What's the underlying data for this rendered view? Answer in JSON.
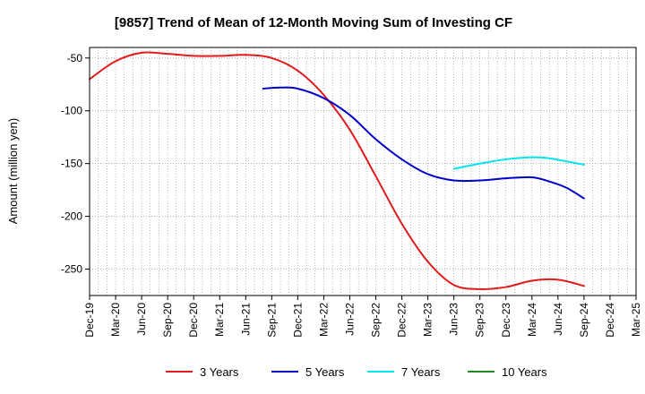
{
  "chart_data": {
    "type": "line",
    "title": "[9857]  Trend of Mean of 12-Month Moving Sum of Investing CF",
    "xlabel": "",
    "ylabel": "Amount (million yen)",
    "ylim": [
      -275,
      -40
    ],
    "yticks": [
      -50,
      -100,
      -150,
      -200,
      -250
    ],
    "x_ticks": [
      "Dec-19",
      "Mar-20",
      "Jun-20",
      "Sep-20",
      "Dec-20",
      "Mar-21",
      "Jun-21",
      "Sep-21",
      "Dec-21",
      "Mar-22",
      "Jun-22",
      "Sep-22",
      "Dec-22",
      "Mar-23",
      "Jun-23",
      "Sep-23",
      "Dec-23",
      "Mar-24",
      "Jun-24",
      "Sep-24",
      "Dec-24",
      "Mar-25"
    ],
    "grid": true,
    "legend_position": "bottom",
    "series": [
      {
        "name": "3 Years",
        "color": "#e31a1c",
        "points": [
          [
            0,
            -70
          ],
          [
            1,
            -53
          ],
          [
            2,
            -45
          ],
          [
            3,
            -46
          ],
          [
            4,
            -48
          ],
          [
            5,
            -48
          ],
          [
            6,
            -47
          ],
          [
            7,
            -50
          ],
          [
            8,
            -62
          ],
          [
            9,
            -85
          ],
          [
            10,
            -118
          ],
          [
            11,
            -162
          ],
          [
            12,
            -207
          ],
          [
            13,
            -243
          ],
          [
            14,
            -265
          ],
          [
            15,
            -269
          ],
          [
            16,
            -267
          ],
          [
            17,
            -261
          ],
          [
            18,
            -260
          ],
          [
            19,
            -266
          ]
        ]
      },
      {
        "name": "5 Years",
        "color": "#0000cc",
        "points": [
          [
            6.67,
            -79
          ],
          [
            7.33,
            -78
          ],
          [
            8,
            -79
          ],
          [
            9,
            -88
          ],
          [
            10,
            -104
          ],
          [
            11,
            -127
          ],
          [
            12,
            -146
          ],
          [
            13,
            -160
          ],
          [
            14,
            -166
          ],
          [
            15,
            -166
          ],
          [
            16,
            -164
          ],
          [
            17,
            -163
          ],
          [
            17.67,
            -167
          ],
          [
            18.33,
            -173
          ],
          [
            19,
            -183
          ]
        ]
      },
      {
        "name": "7 Years",
        "color": "#00e5ee",
        "points": [
          [
            14,
            -155
          ],
          [
            15,
            -150
          ],
          [
            16,
            -146
          ],
          [
            17,
            -144
          ],
          [
            17.67,
            -145
          ],
          [
            18.33,
            -148
          ],
          [
            19,
            -151
          ]
        ]
      },
      {
        "name": "10 Years",
        "color": "#228b22",
        "points": []
      }
    ]
  }
}
